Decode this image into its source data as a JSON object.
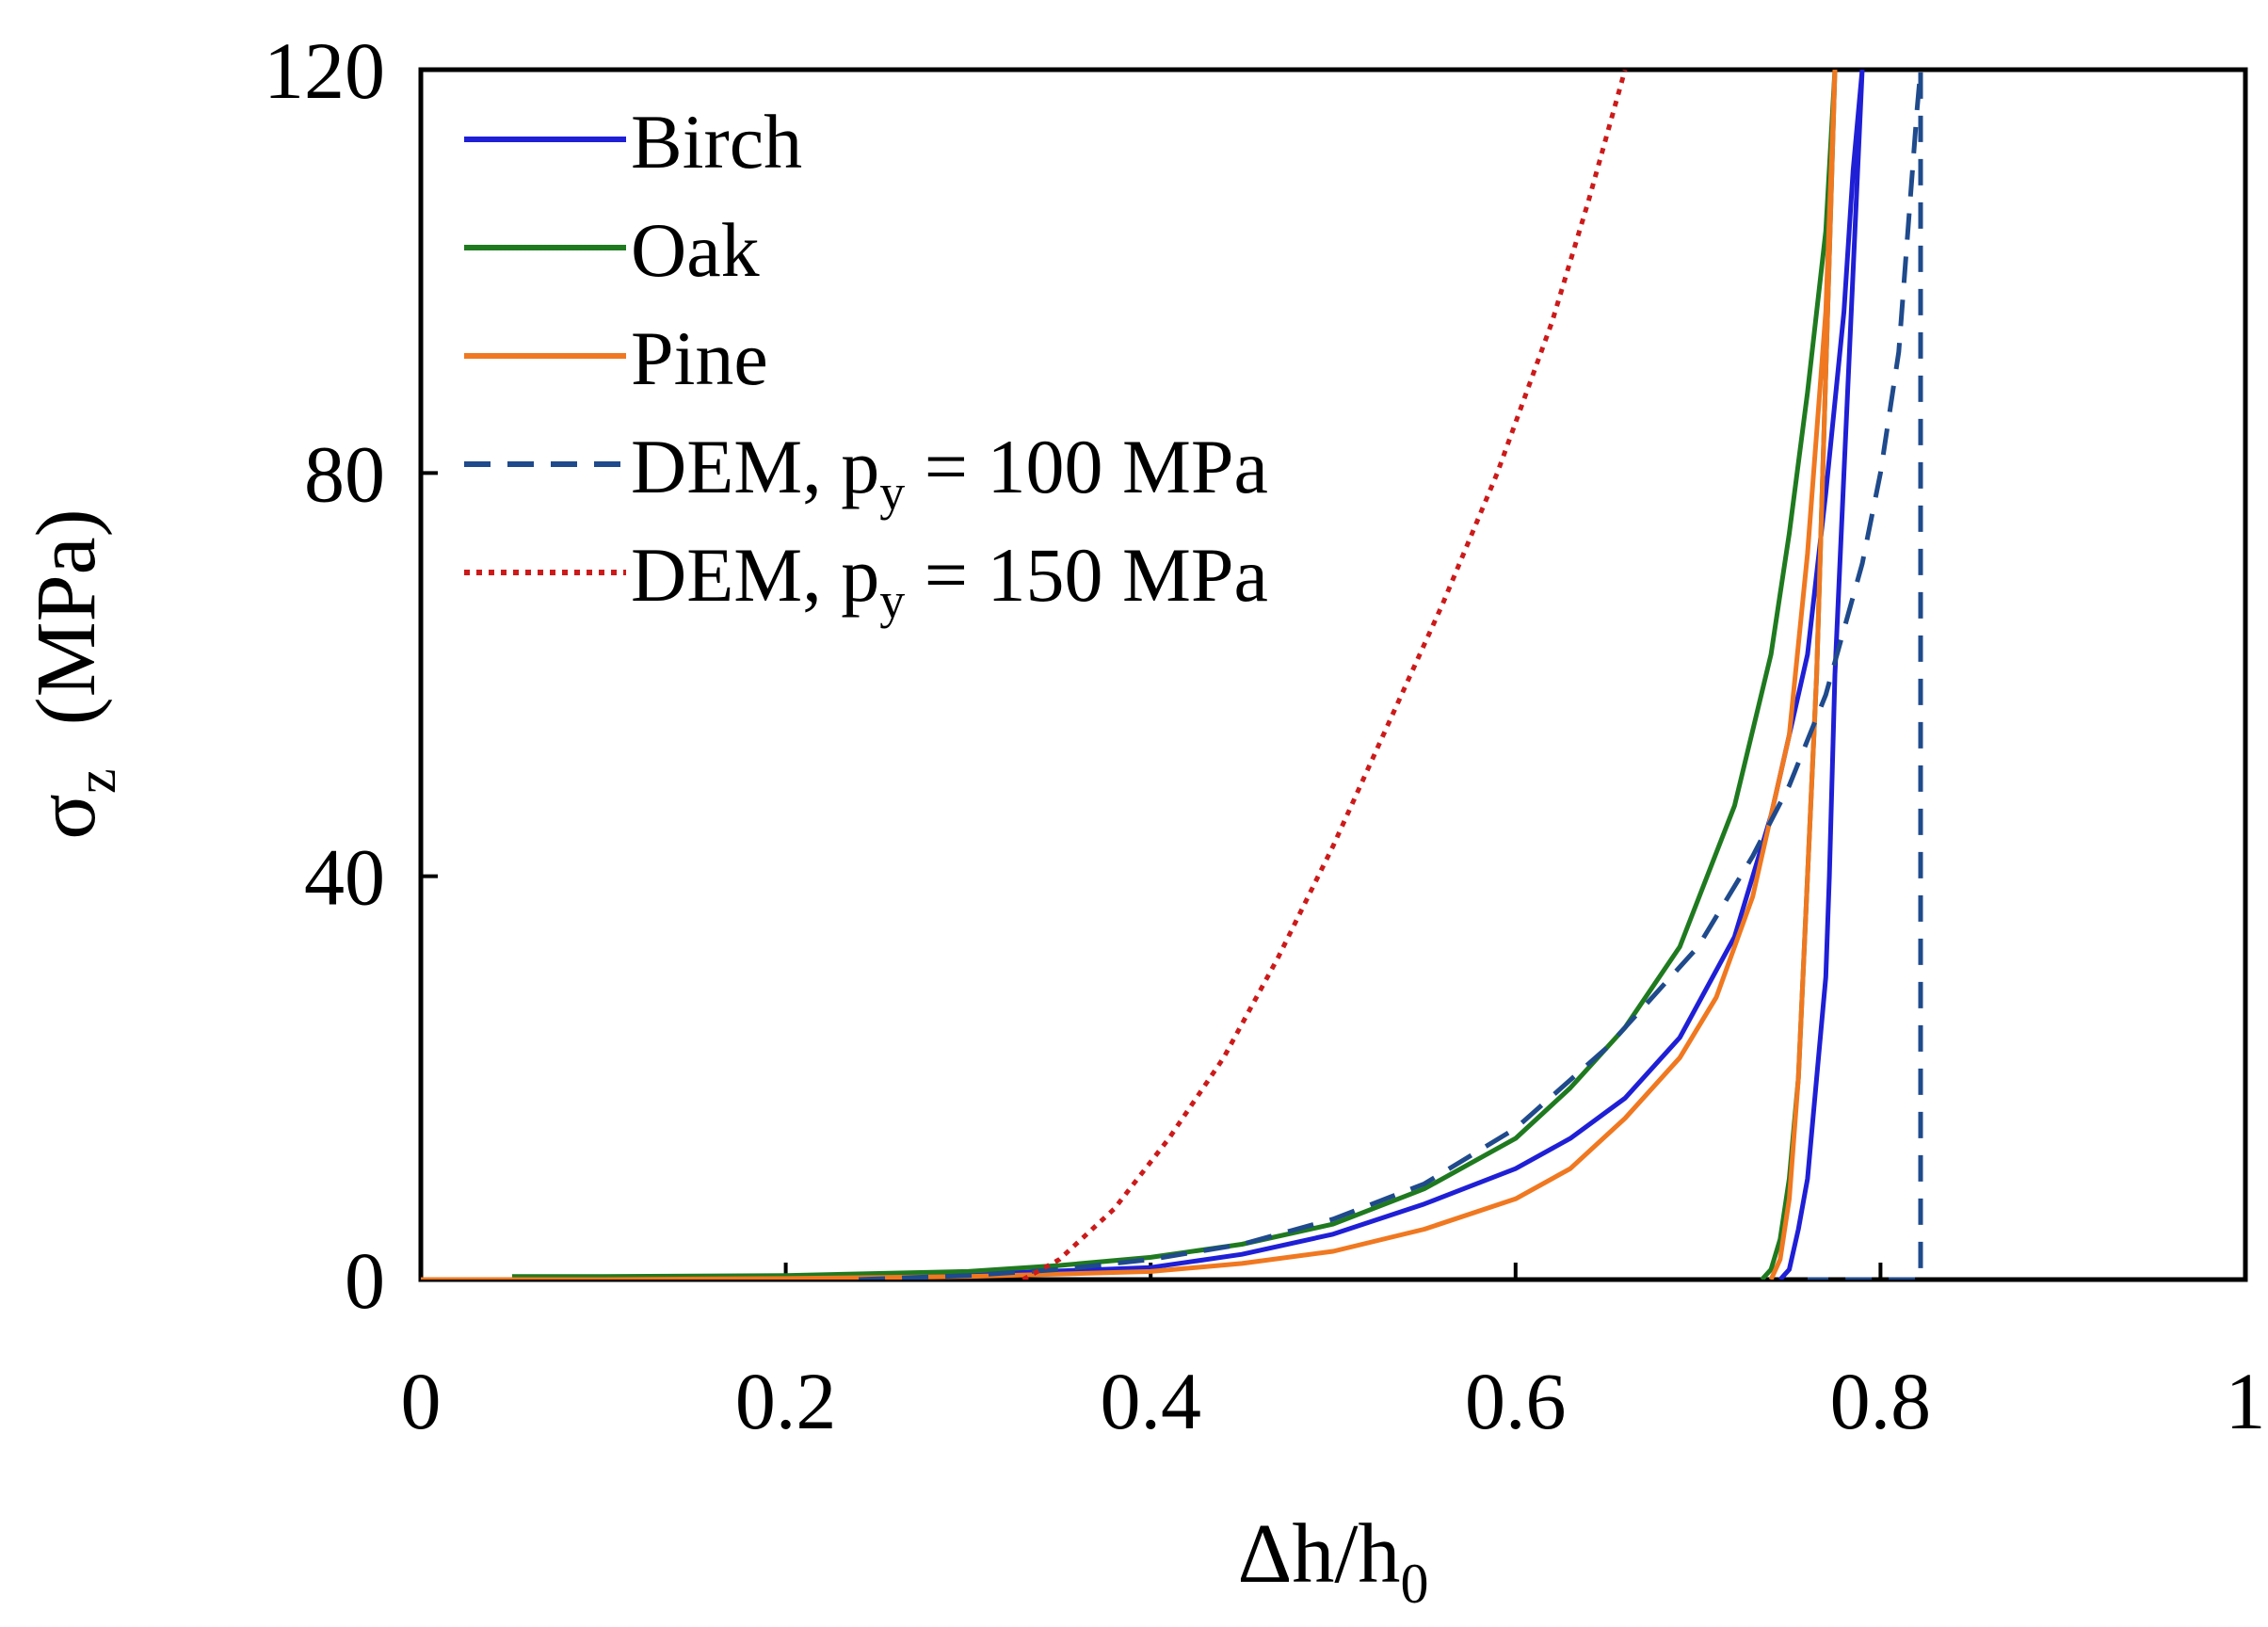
{
  "chart_data": {
    "type": "line",
    "title": "",
    "xlabel": "Δh/h",
    "xlabel_sub": "0",
    "ylabel_symbol": "σ",
    "ylabel_sub": "z",
    "ylabel_unit": "(MPa)",
    "xlim": [
      0,
      1
    ],
    "ylim": [
      0,
      120
    ],
    "xticks": [
      0,
      0.2,
      0.4,
      0.6,
      0.8,
      1
    ],
    "xtick_labels": [
      "0",
      "0.2",
      "0.4",
      "0.6",
      "0.8",
      "1"
    ],
    "yticks": [
      0,
      40,
      80,
      120
    ],
    "ytick_labels": [
      "0",
      "40",
      "80",
      "120"
    ],
    "grid": false,
    "legend_position": "top-left",
    "series": [
      {
        "name": "Birch",
        "label_parts": [
          "Birch"
        ],
        "color": "#1f1fd6",
        "dash": "solid",
        "x": [
          0,
          0.1,
          0.2,
          0.3,
          0.4,
          0.45,
          0.5,
          0.55,
          0.6,
          0.63,
          0.66,
          0.69,
          0.72,
          0.74,
          0.76,
          0.77,
          0.78,
          0.785,
          0.79,
          0.785,
          0.78,
          0.775,
          0.772,
          0.77,
          0.765,
          0.76,
          0.755,
          0.75,
          0.745
        ],
        "values": [
          0,
          0,
          0.2,
          0.5,
          1.2,
          2.5,
          4.5,
          7.5,
          11,
          14,
          18,
          24,
          34,
          46,
          62,
          78,
          96,
          110,
          120,
          100,
          80,
          60,
          40,
          30,
          20,
          10,
          5,
          1,
          0
        ]
      },
      {
        "name": "Oak",
        "label_parts": [
          "Oak"
        ],
        "color": "#1f7a1f",
        "dash": "solid",
        "x": [
          0.05,
          0.1,
          0.2,
          0.3,
          0.35,
          0.4,
          0.45,
          0.5,
          0.55,
          0.6,
          0.63,
          0.66,
          0.69,
          0.72,
          0.74,
          0.75,
          0.76,
          0.77,
          0.775,
          0.77,
          0.765,
          0.76,
          0.755,
          0.75,
          0.745,
          0.74,
          0.735
        ],
        "values": [
          0.3,
          0.3,
          0.4,
          0.8,
          1.4,
          2.2,
          3.5,
          5.5,
          9,
          14,
          19,
          25,
          33,
          47,
          62,
          74,
          88,
          104,
          120,
          90,
          60,
          40,
          20,
          10,
          4,
          1,
          0
        ]
      },
      {
        "name": "Pine",
        "label_parts": [
          "Pine"
        ],
        "color": "#f07820",
        "dash": "solid",
        "x": [
          0,
          0.1,
          0.2,
          0.3,
          0.4,
          0.45,
          0.5,
          0.55,
          0.6,
          0.63,
          0.66,
          0.69,
          0.71,
          0.73,
          0.75,
          0.76,
          0.77,
          0.775,
          0.77,
          0.765,
          0.76,
          0.755,
          0.75,
          0.745,
          0.74
        ],
        "values": [
          0,
          0,
          0.1,
          0.3,
          0.8,
          1.6,
          2.8,
          5,
          8,
          11,
          16,
          22,
          28,
          38,
          54,
          72,
          96,
          120,
          90,
          60,
          40,
          20,
          8,
          2,
          0
        ]
      },
      {
        "name": "DEM, py = 100 MPa",
        "label_parts": [
          "DEM, p",
          "y",
          " = 100 MPa"
        ],
        "color": "#1f4a8c",
        "dash": "28 18",
        "x": [
          0.24,
          0.3,
          0.35,
          0.4,
          0.45,
          0.5,
          0.55,
          0.6,
          0.65,
          0.7,
          0.73,
          0.75,
          0.77,
          0.79,
          0.8,
          0.81,
          0.815,
          0.82,
          0.822,
          0.822,
          0.822,
          0.822,
          0.8,
          0.78,
          0.76
        ],
        "values": [
          0,
          0.4,
          1,
          2,
          3.5,
          6,
          9.5,
          15,
          23,
          33,
          42,
          49,
          58,
          71,
          80,
          92,
          104,
          116,
          120,
          80,
          40,
          0,
          0,
          0,
          0
        ]
      },
      {
        "name": "DEM, py = 150 MPa",
        "label_parts": [
          "DEM, p",
          "y",
          " = 150 MPa"
        ],
        "color": "#cc1a1a",
        "dash": "6 7",
        "x": [
          0.33,
          0.35,
          0.38,
          0.41,
          0.44,
          0.47,
          0.5,
          0.53,
          0.56,
          0.59,
          0.62,
          0.64,
          0.66
        ],
        "values": [
          0,
          2,
          7,
          14,
          22,
          32,
          43,
          55,
          67,
          80,
          95,
          107,
          120
        ]
      }
    ]
  }
}
